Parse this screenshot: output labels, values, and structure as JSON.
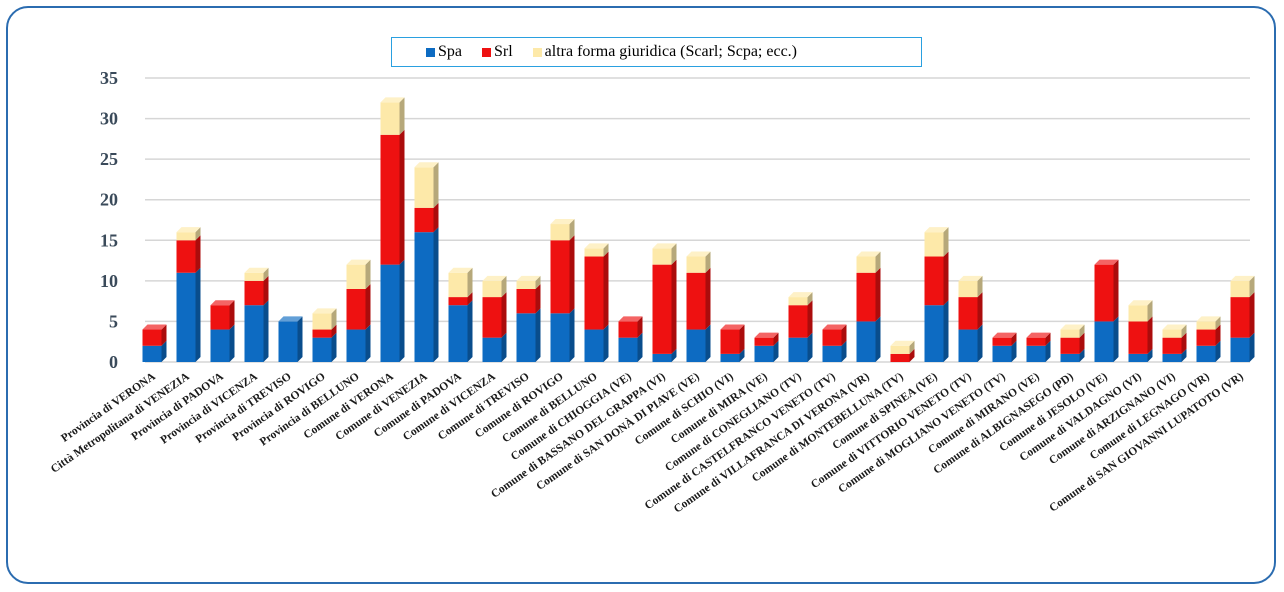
{
  "chart_data": {
    "type": "bar",
    "stacked": true,
    "three_d": true,
    "title": "",
    "xlabel": "",
    "ylabel": "",
    "ylim": [
      0,
      35
    ],
    "yticks": [
      0,
      5,
      10,
      15,
      20,
      25,
      30,
      35
    ],
    "grid": true,
    "legend_position": "top-center",
    "categories": [
      "Provincia di VERONA",
      "Città Metropolitana di VENEZIA",
      "Provincia di PADOVA",
      "Provincia di VICENZA",
      "Provincia di TREVISO",
      "Provincia di ROVIGO",
      "Provincia di BELLUNO",
      "Comune di VERONA",
      "Comune di VENEZIA",
      "Comune di PADOVA",
      "Comune di VICENZA",
      "Comune di TREVISO",
      "Comune di ROVIGO",
      "Comune di BELLUNO",
      "Comune di CHIOGGIA (VE)",
      "Comune di BASSANO DEL GRAPPA (VI)",
      "Comune di SAN DONÀ DI PIAVE (VE)",
      "Comune di SCHIO (VI)",
      "Comune di MIRA (VE)",
      "Comune di CONEGLIANO (TV)",
      "Comune di CASTELFRANCO VENETO (TV)",
      "Comune di VILLAFRANCA DI VERONA (VR)",
      "Comune di MONTEBELLUNA (TV)",
      "Comune di SPINEA (VE)",
      "Comune di VITTORIO VENETO (TV)",
      "Comune di MOGLIANO VENETO (TV)",
      "Comune di MIRANO (VE)",
      "Comune di ALBIGNASEGO (PD)",
      "Comune di JESOLO (VE)",
      "Comune di VALDAGNO (VI)",
      "Comune di ARZIGNANO (VI)",
      "Comune di LEGNAGO (VR)",
      "Comune di SAN GIOVANNI LUPATOTO (VR)"
    ],
    "series": [
      {
        "name": "Spa",
        "color": "#0d6bc2",
        "values": [
          2,
          11,
          4,
          7,
          5,
          3,
          4,
          12,
          16,
          7,
          3,
          6,
          6,
          4,
          3,
          1,
          4,
          1,
          2,
          3,
          2,
          5,
          0,
          7,
          4,
          2,
          2,
          1,
          5,
          1,
          1,
          2,
          3
        ]
      },
      {
        "name": "Srl",
        "color": "#ee1111",
        "values": [
          2,
          4,
          3,
          3,
          0,
          1,
          5,
          16,
          3,
          1,
          5,
          3,
          9,
          9,
          2,
          11,
          7,
          3,
          1,
          4,
          2,
          6,
          1,
          6,
          4,
          1,
          1,
          2,
          7,
          4,
          2,
          2,
          5
        ]
      },
      {
        "name": "altra forma giuridica (Scarl; Scpa; ecc.)",
        "color": "#fde9a9",
        "values": [
          0,
          1,
          0,
          1,
          0,
          2,
          3,
          4,
          5,
          3,
          2,
          1,
          2,
          1,
          0,
          2,
          2,
          0,
          0,
          1,
          0,
          2,
          1,
          3,
          2,
          0,
          0,
          1,
          0,
          2,
          1,
          1,
          2
        ]
      }
    ]
  }
}
